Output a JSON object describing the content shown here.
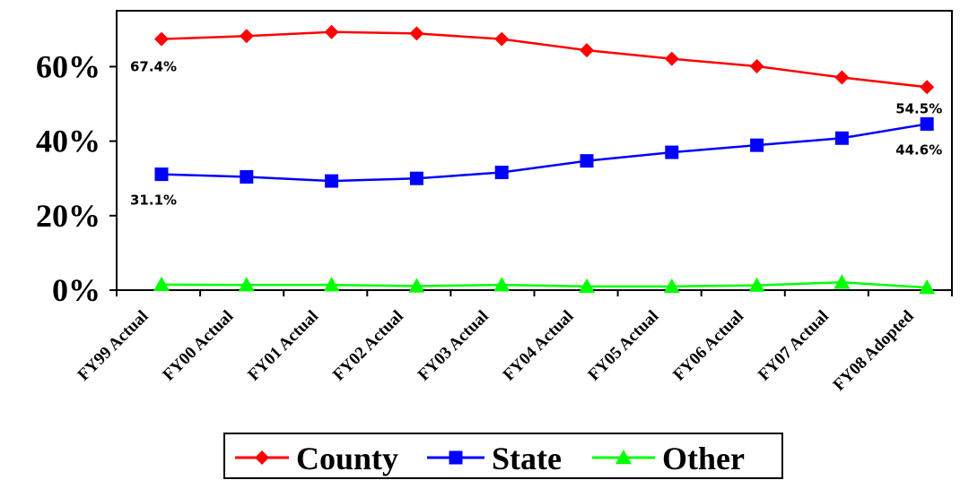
{
  "chart_data": {
    "type": "line",
    "categories": [
      "FY99 Actual",
      "FY00 Actual",
      "FY01 Actual",
      "FY02 Actual",
      "FY03 Actual",
      "FY04 Actual",
      "FY05 Actual",
      "FY06 Actual",
      "FY07 Actual",
      "FY08 Adopted"
    ],
    "series": [
      {
        "name": "County",
        "color": "#ff0000",
        "marker": "diamond",
        "values": [
          67.4,
          68.2,
          69.3,
          68.9,
          67.4,
          64.4,
          62.1,
          60.1,
          57.1,
          54.5
        ]
      },
      {
        "name": "State",
        "color": "#0000ff",
        "marker": "square",
        "values": [
          31.1,
          30.4,
          29.3,
          30.0,
          31.6,
          34.7,
          37.0,
          38.9,
          40.8,
          44.6
        ]
      },
      {
        "name": "Other",
        "color": "#00ff00",
        "marker": "triangle",
        "values": [
          1.5,
          1.4,
          1.4,
          1.1,
          1.4,
          1.0,
          1.0,
          1.3,
          2.1,
          0.7
        ]
      }
    ],
    "data_labels": [
      {
        "series": "County",
        "index": 0,
        "text": "67.4%"
      },
      {
        "series": "County",
        "index": 9,
        "text": "54.5%"
      },
      {
        "series": "State",
        "index": 0,
        "text": "31.1%"
      },
      {
        "series": "State",
        "index": 9,
        "text": "44.6%"
      }
    ],
    "y_ticks": [
      {
        "value": 0,
        "label": "0%"
      },
      {
        "value": 20,
        "label": "20%"
      },
      {
        "value": 40,
        "label": "40%"
      },
      {
        "value": 60,
        "label": "60%"
      }
    ],
    "ylim": [
      0,
      75
    ],
    "grid": false,
    "legend_position": "bottom",
    "title": "",
    "xlabel": "",
    "ylabel": ""
  }
}
